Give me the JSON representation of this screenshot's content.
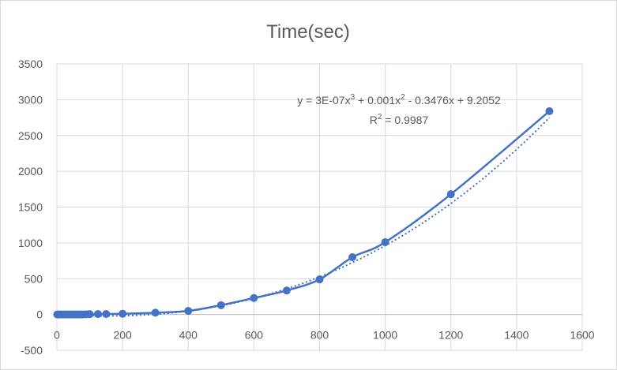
{
  "chart_data": {
    "type": "scatter",
    "title": "Time(sec)",
    "xlabel": "",
    "ylabel": "",
    "xlim": [
      0,
      1600
    ],
    "ylim": [
      -500,
      3500
    ],
    "x_ticks": [
      0,
      200,
      400,
      600,
      800,
      1000,
      1200,
      1400,
      1600
    ],
    "y_ticks": [
      -500,
      0,
      500,
      1000,
      1500,
      2000,
      2500,
      3000,
      3500
    ],
    "grid": true,
    "series": [
      {
        "color": "#4472c4",
        "marker": "circle",
        "line": "smoothed",
        "points": [
          [
            1,
            0
          ],
          [
            5,
            0
          ],
          [
            10,
            0
          ],
          [
            15,
            0
          ],
          [
            20,
            0
          ],
          [
            25,
            0
          ],
          [
            30,
            0
          ],
          [
            35,
            0
          ],
          [
            40,
            0
          ],
          [
            45,
            0
          ],
          [
            50,
            0
          ],
          [
            55,
            0
          ],
          [
            60,
            0
          ],
          [
            65,
            0
          ],
          [
            70,
            0
          ],
          [
            75,
            0
          ],
          [
            80,
            0
          ],
          [
            90,
            3
          ],
          [
            100,
            5
          ],
          [
            125,
            6
          ],
          [
            150,
            7
          ],
          [
            200,
            10
          ],
          [
            300,
            25
          ],
          [
            400,
            50
          ],
          [
            500,
            130
          ],
          [
            600,
            230
          ],
          [
            700,
            335
          ],
          [
            800,
            490
          ],
          [
            900,
            800
          ],
          [
            1000,
            1010
          ],
          [
            1200,
            1680
          ],
          [
            1500,
            2840
          ]
        ]
      }
    ],
    "trendline": {
      "type": "polynomial-3",
      "style": "dotted",
      "color": "#4472c4",
      "coefficients": [
        3e-07,
        0.001,
        -0.3476,
        9.2052
      ]
    },
    "annotation": {
      "equation_prefix": "y = 3E-07x",
      "eq_sup1": "3",
      "eq_mid": " + 0.001x",
      "eq_sup2": "2",
      "eq_suffix": " - 0.3476x + 9.2052",
      "r2_prefix": "R",
      "r2_sup": "2",
      "r2_suffix": " = 0.9987"
    }
  }
}
